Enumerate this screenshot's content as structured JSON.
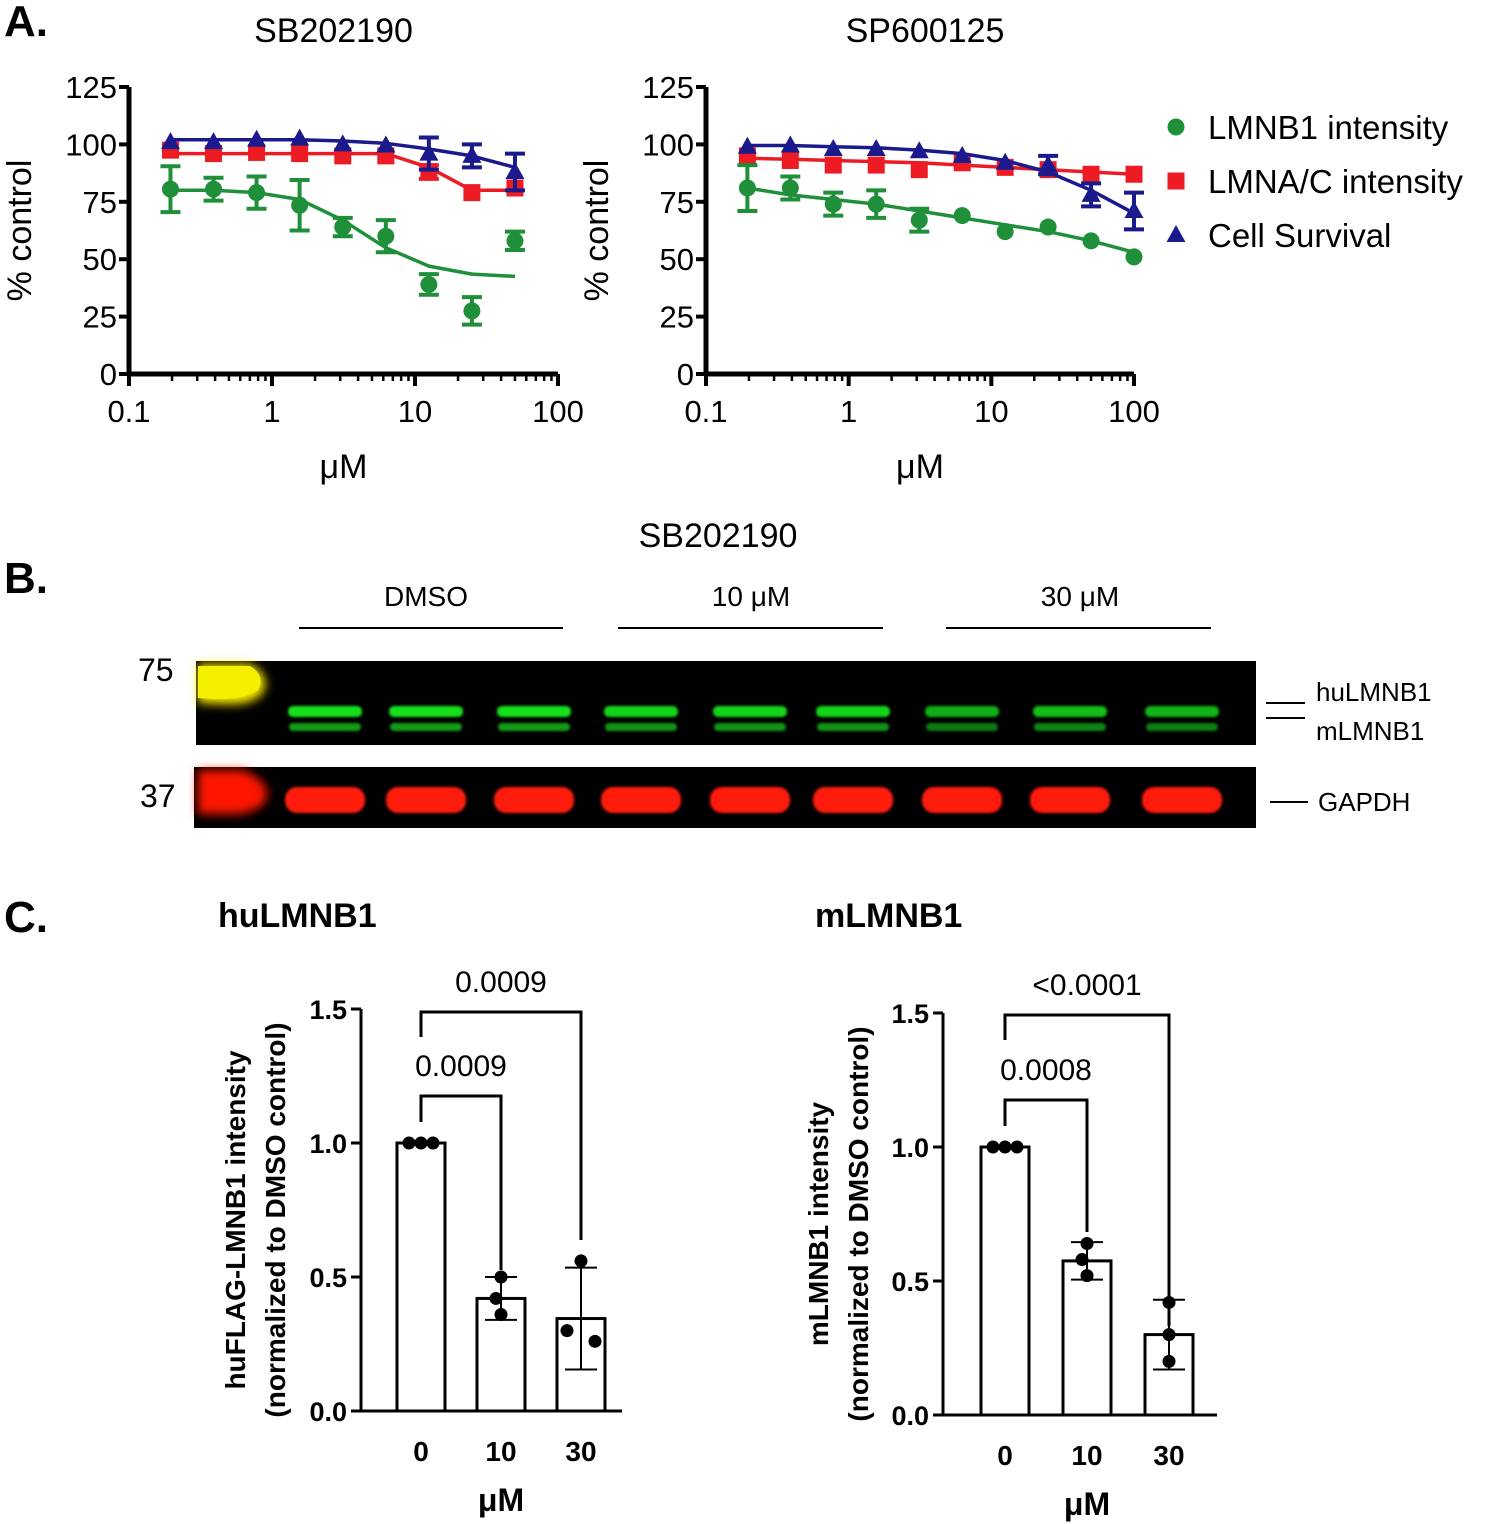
{
  "panels": {
    "a": "A.",
    "b": "B.",
    "c": "C."
  },
  "colors": {
    "lmnb1": "#1f8f3a",
    "lmnac": "#ed1c24",
    "survival": "#1b1a8c"
  },
  "legend": {
    "items": [
      {
        "label": "LMNB1 intensity",
        "marker": "circle",
        "color": "#1f8f3a"
      },
      {
        "label": "LMNA/C intensity",
        "marker": "square",
        "color": "#ed1c24"
      },
      {
        "label": "Cell Survival",
        "marker": "triangle",
        "color": "#1b1a8c"
      }
    ]
  },
  "blot": {
    "title": "SB202190",
    "groups": [
      "DMSO",
      "10 μM",
      "30 μM"
    ],
    "markers": [
      "75",
      "37"
    ],
    "bands": [
      "huLMNB1",
      "mLMNB1",
      "GAPDH"
    ]
  },
  "chart_data": [
    {
      "type": "scatter",
      "title": "SB202190",
      "xlabel": "μM",
      "ylabel": "% control",
      "xscale": "log",
      "xlim": [
        0.1,
        100
      ],
      "ylim": [
        0,
        125
      ],
      "xticks": [
        "0.1",
        "1",
        "10",
        "100"
      ],
      "yticks": [
        "0",
        "25",
        "50",
        "75",
        "100",
        "125"
      ],
      "series": [
        {
          "name": "LMNB1 intensity",
          "marker": "circle",
          "color": "#1f8f3a",
          "x": [
            0.195,
            0.39,
            0.78,
            1.56,
            3.125,
            6.25,
            12.5,
            25,
            50
          ],
          "y": [
            80.5,
            80.5,
            79,
            73.5,
            64,
            60,
            39,
            27.5,
            58
          ],
          "err": [
            10,
            5,
            7,
            11,
            4,
            7,
            4.5,
            6,
            4
          ],
          "fit": [
            80,
            80,
            79,
            76,
            67,
            55,
            47,
            43.5,
            42.5
          ]
        },
        {
          "name": "LMNA/C intensity",
          "marker": "square",
          "color": "#ed1c24",
          "x": [
            0.195,
            0.39,
            0.78,
            1.56,
            3.125,
            6.25,
            12.5,
            25,
            50
          ],
          "y": [
            97.5,
            96,
            96.5,
            96,
            95,
            95,
            88,
            79,
            81
          ],
          "err": [
            2,
            2,
            2,
            2,
            2,
            2,
            3,
            2,
            2
          ],
          "fit": [
            96,
            96,
            96,
            96,
            96,
            96,
            90,
            80,
            80
          ]
        },
        {
          "name": "Cell Survival",
          "marker": "triangle",
          "color": "#1b1a8c",
          "x": [
            0.195,
            0.39,
            0.78,
            1.56,
            3.125,
            6.25,
            12.5,
            25,
            50
          ],
          "y": [
            101,
            101,
            102,
            102.5,
            100,
            99.5,
            96,
            95,
            88
          ],
          "err": [
            2,
            2,
            2,
            2,
            2,
            2,
            7,
            5,
            8
          ],
          "fit": [
            102,
            102,
            102,
            102,
            101.5,
            100.5,
            98,
            95,
            90
          ]
        }
      ]
    },
    {
      "type": "scatter",
      "title": "SP600125",
      "xlabel": "μM",
      "ylabel": "% control",
      "xscale": "log",
      "xlim": [
        0.1,
        100
      ],
      "ylim": [
        0,
        125
      ],
      "xticks": [
        "0.1",
        "1",
        "10",
        "100"
      ],
      "yticks": [
        "0",
        "25",
        "50",
        "75",
        "100",
        "125"
      ],
      "series": [
        {
          "name": "LMNB1 intensity",
          "marker": "circle",
          "color": "#1f8f3a",
          "x": [
            0.195,
            0.39,
            0.78,
            1.56,
            3.125,
            6.25,
            12.5,
            25,
            50,
            100
          ],
          "y": [
            81,
            81,
            74,
            74,
            67,
            69,
            62,
            64,
            58,
            51
          ],
          "err": [
            10,
            5,
            5,
            6,
            5,
            2,
            2,
            2,
            2,
            2
          ],
          "fit": [
            81,
            78,
            76,
            74,
            71,
            68,
            65,
            62,
            58,
            53
          ]
        },
        {
          "name": "LMNA/C intensity",
          "marker": "square",
          "color": "#ed1c24",
          "x": [
            0.195,
            0.39,
            0.78,
            1.56,
            3.125,
            6.25,
            12.5,
            25,
            50,
            100
          ],
          "y": [
            95,
            93,
            91,
            91,
            89,
            92,
            90,
            89,
            87,
            87
          ],
          "err": [
            2,
            2,
            2,
            2,
            2,
            2,
            2,
            2,
            2,
            2
          ],
          "fit": [
            94,
            93.5,
            93,
            92.5,
            92,
            91,
            90,
            89,
            88,
            87
          ]
        },
        {
          "name": "Cell Survival",
          "marker": "triangle",
          "color": "#1b1a8c",
          "x": [
            0.195,
            0.39,
            0.78,
            1.56,
            3.125,
            6.25,
            12.5,
            25,
            50,
            100
          ],
          "y": [
            99,
            99.5,
            98,
            98,
            97,
            95,
            92,
            91,
            78,
            71
          ],
          "err": [
            2,
            2,
            2,
            2,
            2,
            2,
            2,
            4,
            5,
            8
          ],
          "fit": [
            99.5,
            99.5,
            99,
            98.5,
            97.5,
            96,
            93,
            88,
            80,
            70
          ]
        }
      ]
    },
    {
      "type": "bar",
      "title": "huLMNB1",
      "xlabel": "μM",
      "ylabel": "huFLAG-LMNB1 intensity",
      "ylabel2": "(normalized to DMSO control)",
      "ylim": [
        0,
        1.5
      ],
      "yticks": [
        "0.0",
        "0.5",
        "1.0",
        "1.5"
      ],
      "categories": [
        "0",
        "10",
        "30"
      ],
      "values": [
        1.0,
        0.42,
        0.345
      ],
      "sd": [
        0,
        0.08,
        0.19
      ],
      "points": [
        [
          1.0,
          1.0,
          1.0
        ],
        [
          0.5,
          0.42,
          0.36
        ],
        [
          0.56,
          0.3,
          0.26
        ]
      ],
      "comparisons": [
        {
          "from": "0",
          "to": "10",
          "p": "0.0009"
        },
        {
          "from": "0",
          "to": "30",
          "p": "0.0009"
        }
      ]
    },
    {
      "type": "bar",
      "title": "mLMNB1",
      "xlabel": "μM",
      "ylabel": "mLMNB1 intensity",
      "ylabel2": "(normalized to DMSO control)",
      "ylim": [
        0,
        1.5
      ],
      "yticks": [
        "0.0",
        "0.5",
        "1.0",
        "1.5"
      ],
      "categories": [
        "0",
        "10",
        "30"
      ],
      "values": [
        1.0,
        0.575,
        0.3
      ],
      "sd": [
        0,
        0.07,
        0.13
      ],
      "points": [
        [
          1.0,
          1.0,
          1.0
        ],
        [
          0.64,
          0.58,
          0.52
        ],
        [
          0.42,
          0.3,
          0.2
        ]
      ],
      "comparisons": [
        {
          "from": "0",
          "to": "10",
          "p": "0.0008"
        },
        {
          "from": "0",
          "to": "30",
          "p": "<0.0001"
        }
      ]
    }
  ]
}
